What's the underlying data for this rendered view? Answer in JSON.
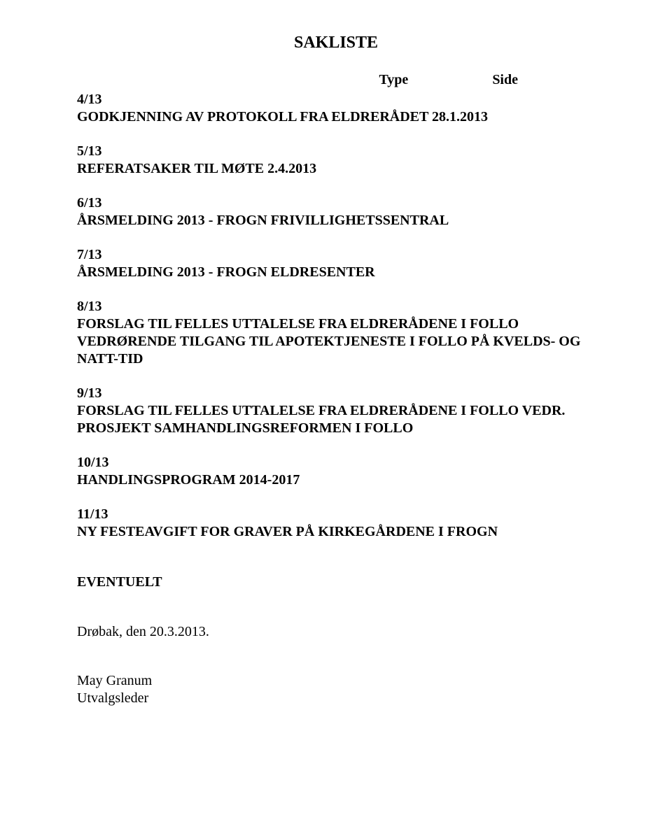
{
  "title": "SAKLISTE",
  "header": {
    "col1": "Type",
    "col2": "Side"
  },
  "sections": [
    {
      "num": "4/13",
      "lines": [
        "GODKJENNING AV PROTOKOLL FRA ELDRERÅDET 28.1.2013"
      ]
    },
    {
      "num": "5/13",
      "lines": [
        "REFERATSAKER TIL MØTE 2.4.2013"
      ]
    },
    {
      "num": "6/13",
      "lines": [
        "ÅRSMELDING 2013 - FROGN FRIVILLIGHETSSENTRAL"
      ]
    },
    {
      "num": "7/13",
      "lines": [
        "ÅRSMELDING 2013 - FROGN ELDRESENTER"
      ]
    },
    {
      "num": "8/13",
      "lines": [
        "FORSLAG TIL FELLES UTTALELSE FRA ELDRERÅDENE I FOLLO",
        "VEDRØRENDE TILGANG TIL APOTEKTJENESTE I FOLLO PÅ KVELDS- OG",
        "NATT-TID"
      ]
    },
    {
      "num": "9/13",
      "lines": [
        "FORSLAG TIL FELLES UTTALELSE FRA ELDRERÅDENE I FOLLO VEDR.",
        "PROSJEKT SAMHANDLINGSREFORMEN I FOLLO"
      ]
    },
    {
      "num": "10/13",
      "lines": [
        "HANDLINGSPROGRAM 2014-2017"
      ]
    },
    {
      "num": "11/13",
      "lines": [
        "NY FESTEAVGIFT FOR GRAVER PÅ KIRKEGÅRDENE I FROGN"
      ]
    }
  ],
  "eventuelt": "EVENTUELT",
  "date": "Drøbak, den 20.3.2013.",
  "signer_name": "May Granum",
  "signer_role": "Utvalgsleder"
}
